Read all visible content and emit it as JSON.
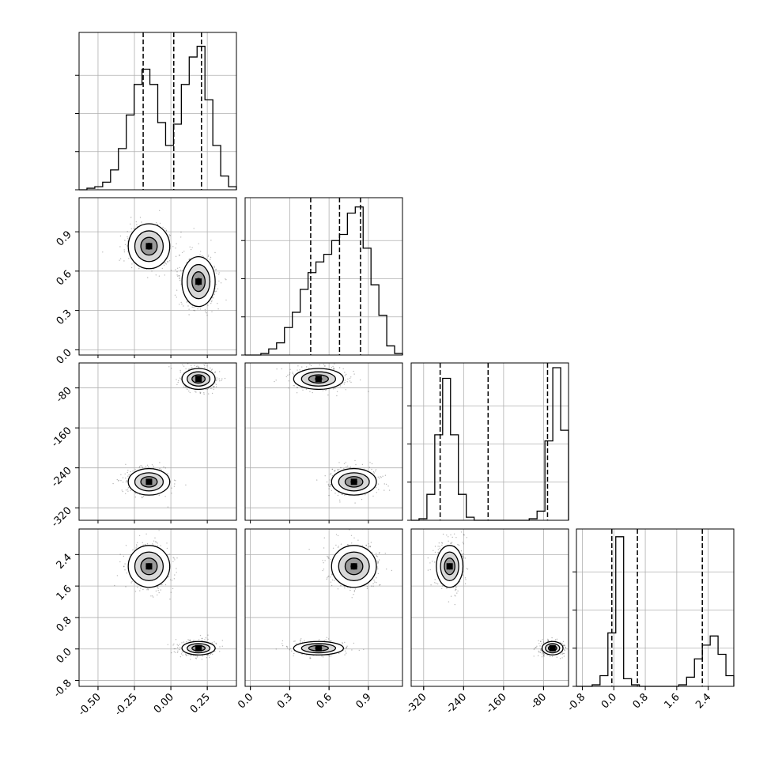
{
  "chart_data": {
    "type": "corner",
    "title": "",
    "parameters": [
      {
        "index": 0,
        "range": [
          -0.63,
          0.45
        ],
        "ticks": [
          "-0.50",
          "-0.25",
          "0.00",
          "0.25"
        ],
        "tick_values": [
          -0.5,
          -0.25,
          0.0,
          0.25
        ],
        "quantiles": [
          -0.19,
          0.02,
          0.21
        ]
      },
      {
        "index": 1,
        "range": [
          -0.04,
          1.16
        ],
        "ticks": [
          "0.0",
          "0.3",
          "0.6",
          "0.9"
        ],
        "tick_values": [
          0.0,
          0.3,
          0.6,
          0.9
        ],
        "quantiles": [
          0.46,
          0.68,
          0.84
        ]
      },
      {
        "index": 2,
        "range": [
          -345,
          -30
        ],
        "ticks": [
          "-320",
          "-240",
          "-160",
          "-80"
        ],
        "tick_values": [
          -320,
          -240,
          -160,
          -80
        ],
        "quantiles": [
          -287,
          -191,
          -72
        ]
      },
      {
        "index": 3,
        "range": [
          -0.95,
          3.05
        ],
        "ticks": [
          "-0.8",
          "0.0",
          "0.8",
          "1.6",
          "2.4"
        ],
        "tick_values": [
          -0.8,
          0.0,
          0.8,
          1.6,
          2.4
        ],
        "quantiles": [
          -0.05,
          0.6,
          2.25
        ]
      }
    ],
    "histograms": [
      [
        0.0,
        0.01,
        0.02,
        0.05,
        0.13,
        0.27,
        0.49,
        0.69,
        0.79,
        0.69,
        0.44,
        0.29,
        0.43,
        0.69,
        0.87,
        0.94,
        0.59,
        0.29,
        0.09,
        0.02
      ],
      [
        0.0,
        0.0,
        0.01,
        0.04,
        0.08,
        0.18,
        0.28,
        0.43,
        0.54,
        0.61,
        0.66,
        0.75,
        0.79,
        0.93,
        0.97,
        0.7,
        0.46,
        0.26,
        0.06,
        0.01
      ],
      [
        0.0,
        0.01,
        0.17,
        0.56,
        0.93,
        0.56,
        0.17,
        0.02,
        0.0,
        0.0,
        0.0,
        0.0,
        0.0,
        0.0,
        0.0,
        0.01,
        0.06,
        0.52,
        1.0,
        0.59
      ],
      [
        0.0,
        0.0,
        0.01,
        0.07,
        0.35,
        0.98,
        0.05,
        0.01,
        0.0,
        0.0,
        0.0,
        0.0,
        0.0,
        0.01,
        0.06,
        0.18,
        0.27,
        0.33,
        0.21,
        0.07
      ]
    ],
    "modes": [
      {
        "mean": [
          -0.15,
          0.79,
          -268,
          2.1
        ],
        "sd": [
          0.075,
          0.09,
          14,
          0.28
        ]
      },
      {
        "mean": [
          0.19,
          0.52,
          -62,
          0.02
        ],
        "sd": [
          0.06,
          0.1,
          11,
          0.09
        ]
      }
    ],
    "grid": true
  }
}
